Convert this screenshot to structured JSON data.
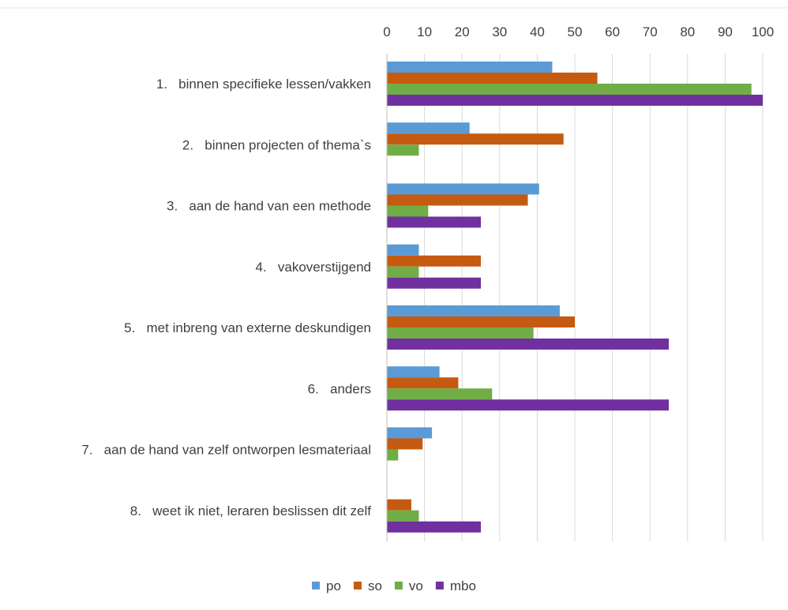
{
  "chart_data": {
    "type": "bar",
    "orientation": "horizontal",
    "categories": [
      "1.   binnen specifieke lessen/vakken",
      "2.   binnen projecten of thema`s",
      "3.   aan de hand van een methode",
      "4.   vakoverstijgend",
      "5.   met inbreng van externe deskundigen",
      "6.   anders",
      "7.   aan de hand van zelf ontworpen lesmateriaal",
      "8.   weet ik niet, leraren beslissen dit zelf"
    ],
    "series": [
      {
        "name": "po",
        "color": "#5b9bd5",
        "values": [
          44,
          22,
          40.5,
          8.5,
          46,
          14,
          12,
          0
        ]
      },
      {
        "name": "so",
        "color": "#c55a11",
        "values": [
          56,
          47,
          37.5,
          25,
          50,
          19,
          9.5,
          6.5
        ]
      },
      {
        "name": "vo",
        "color": "#70ad47",
        "values": [
          97,
          8.5,
          11,
          8.5,
          39,
          28,
          3,
          8.5
        ]
      },
      {
        "name": "mbo",
        "color": "#7030a0",
        "values": [
          100,
          0,
          25,
          25,
          75,
          75,
          0,
          25
        ]
      }
    ],
    "xticks": [
      "0",
      "10",
      "20",
      "30",
      "40",
      "50",
      "60",
      "70",
      "80",
      "90",
      "100"
    ],
    "xlim": [
      0,
      100
    ],
    "title": "",
    "xlabel": "",
    "ylabel": "",
    "grid": true,
    "axis_position": "top",
    "legend_position": "bottom"
  }
}
